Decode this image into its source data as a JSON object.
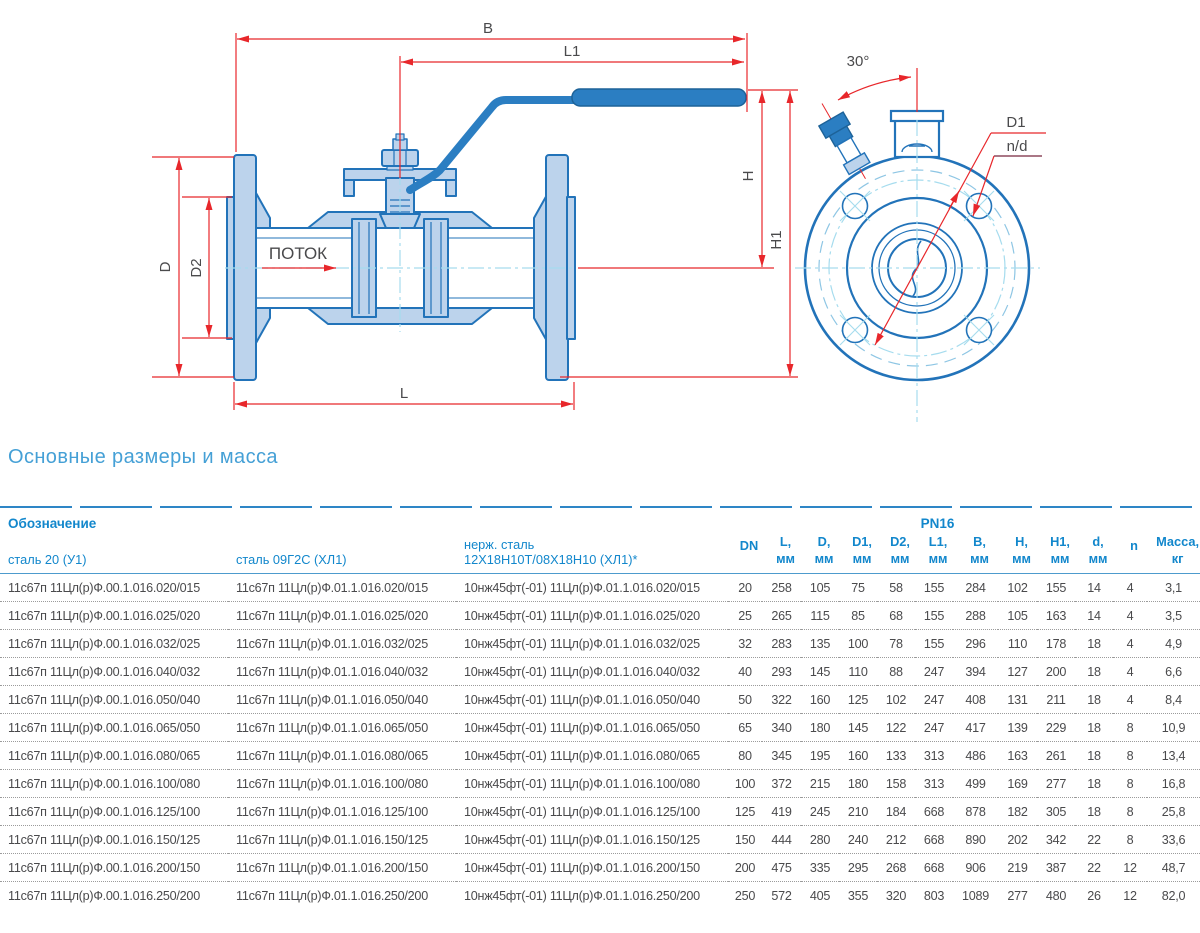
{
  "page": {
    "title": "Основные размеры и масса"
  },
  "colors": {
    "accent_blue": "#1287cc",
    "title_blue": "#45a0d6",
    "drawing_line_blue": "#2273b9",
    "drawing_fill_blue": "#bcd3ec",
    "handle_blue": "#2b7ec2",
    "dimension_red": "#e8272b",
    "centerline_cyan": "#a6dcee",
    "nd_underline_maroon": "#8e4a5e",
    "text_gray": "#4a4a4c"
  },
  "drawing": {
    "labels": {
      "b": "B",
      "l1": "L1",
      "h": "H",
      "h1": "H1",
      "d": "D",
      "d2": "D2",
      "l": "L",
      "flow": "ПОТОК",
      "angle": "30°",
      "d1": "D1",
      "nd": "n/d"
    }
  },
  "table": {
    "designation_header": "Обозначение",
    "pn_header": "PN16",
    "columns": [
      {
        "key": "steel20",
        "label": "сталь 20 (У1)",
        "mat": true
      },
      {
        "key": "steel09g2s",
        "label": "сталь 09Г2С (ХЛ1)",
        "mat": true
      },
      {
        "key": "stainless",
        "label": "нерж. сталь",
        "unit": "12Х18Н10Т/08Х18Н10 (ХЛ1)*",
        "mat": true
      },
      {
        "key": "dn",
        "label": "DN",
        "mid": true
      },
      {
        "key": "l",
        "label": "L,",
        "unit": "мм"
      },
      {
        "key": "d",
        "label": "D,",
        "unit": "мм"
      },
      {
        "key": "d1",
        "label": "D1,",
        "unit": "мм"
      },
      {
        "key": "d2",
        "label": "D2,",
        "unit": "мм"
      },
      {
        "key": "l1",
        "label": "L1,",
        "unit": "мм"
      },
      {
        "key": "b",
        "label": "B,",
        "unit": "мм"
      },
      {
        "key": "h",
        "label": "H,",
        "unit": "мм"
      },
      {
        "key": "h1",
        "label": "H1,",
        "unit": "мм"
      },
      {
        "key": "d-hole",
        "label": "d,",
        "unit": "мм"
      },
      {
        "key": "n",
        "label": "n",
        "mid": true
      },
      {
        "key": "mass",
        "label": "Масса,",
        "unit": "кг"
      }
    ],
    "rows": [
      [
        "11с67п 11Цл(р)Ф.00.1.016.020/015",
        "11с67п 11Цл(р)Ф.01.1.016.020/015",
        "10нж45фт(-01) 11Цл(р)Ф.01.1.016.020/015",
        "20",
        "258",
        "105",
        "75",
        "58",
        "155",
        "284",
        "102",
        "155",
        "14",
        "4",
        "3,1"
      ],
      [
        "11с67п 11Цл(р)Ф.00.1.016.025/020",
        "11с67п 11Цл(р)Ф.01.1.016.025/020",
        "10нж45фт(-01) 11Цл(р)Ф.01.1.016.025/020",
        "25",
        "265",
        "115",
        "85",
        "68",
        "155",
        "288",
        "105",
        "163",
        "14",
        "4",
        "3,5"
      ],
      [
        "11с67п 11Цл(р)Ф.00.1.016.032/025",
        "11с67п 11Цл(р)Ф.01.1.016.032/025",
        "10нж45фт(-01) 11Цл(р)Ф.01.1.016.032/025",
        "32",
        "283",
        "135",
        "100",
        "78",
        "155",
        "296",
        "110",
        "178",
        "18",
        "4",
        "4,9"
      ],
      [
        "11с67п 11Цл(р)Ф.00.1.016.040/032",
        "11с67п 11Цл(р)Ф.01.1.016.040/032",
        "10нж45фт(-01) 11Цл(р)Ф.01.1.016.040/032",
        "40",
        "293",
        "145",
        "110",
        "88",
        "247",
        "394",
        "127",
        "200",
        "18",
        "4",
        "6,6"
      ],
      [
        "11с67п 11Цл(р)Ф.00.1.016.050/040",
        "11с67п 11Цл(р)Ф.01.1.016.050/040",
        "10нж45фт(-01) 11Цл(р)Ф.01.1.016.050/040",
        "50",
        "322",
        "160",
        "125",
        "102",
        "247",
        "408",
        "131",
        "211",
        "18",
        "4",
        "8,4"
      ],
      [
        "11с67п 11Цл(р)Ф.00.1.016.065/050",
        "11с67п 11Цл(р)Ф.01.1.016.065/050",
        "10нж45фт(-01) 11Цл(р)Ф.01.1.016.065/050",
        "65",
        "340",
        "180",
        "145",
        "122",
        "247",
        "417",
        "139",
        "229",
        "18",
        "8",
        "10,9"
      ],
      [
        "11с67п 11Цл(р)Ф.00.1.016.080/065",
        "11с67п 11Цл(р)Ф.01.1.016.080/065",
        "10нж45фт(-01) 11Цл(р)Ф.01.1.016.080/065",
        "80",
        "345",
        "195",
        "160",
        "133",
        "313",
        "486",
        "163",
        "261",
        "18",
        "8",
        "13,4"
      ],
      [
        "11с67п 11Цл(р)Ф.00.1.016.100/080",
        "11с67п 11Цл(р)Ф.01.1.016.100/080",
        "10нж45фт(-01) 11Цл(р)Ф.01.1.016.100/080",
        "100",
        "372",
        "215",
        "180",
        "158",
        "313",
        "499",
        "169",
        "277",
        "18",
        "8",
        "16,8"
      ],
      [
        "11с67п 11Цл(р)Ф.00.1.016.125/100",
        "11с67п 11Цл(р)Ф.01.1.016.125/100",
        "10нж45фт(-01) 11Цл(р)Ф.01.1.016.125/100",
        "125",
        "419",
        "245",
        "210",
        "184",
        "668",
        "878",
        "182",
        "305",
        "18",
        "8",
        "25,8"
      ],
      [
        "11с67п 11Цл(р)Ф.00.1.016.150/125",
        "11с67п 11Цл(р)Ф.01.1.016.150/125",
        "10нж45фт(-01) 11Цл(р)Ф.01.1.016.150/125",
        "150",
        "444",
        "280",
        "240",
        "212",
        "668",
        "890",
        "202",
        "342",
        "22",
        "8",
        "33,6"
      ],
      [
        "11с67п 11Цл(р)Ф.00.1.016.200/150",
        "11с67п 11Цл(р)Ф.01.1.016.200/150",
        "10нж45фт(-01) 11Цл(р)Ф.01.1.016.200/150",
        "200",
        "475",
        "335",
        "295",
        "268",
        "668",
        "906",
        "219",
        "387",
        "22",
        "12",
        "48,7"
      ],
      [
        "11с67п 11Цл(р)Ф.00.1.016.250/200",
        "11с67п 11Цл(р)Ф.01.1.016.250/200",
        "10нж45фт(-01) 11Цл(р)Ф.01.1.016.250/200",
        "250",
        "572",
        "405",
        "355",
        "320",
        "803",
        "1089",
        "277",
        "480",
        "26",
        "12",
        "82,0"
      ]
    ]
  }
}
